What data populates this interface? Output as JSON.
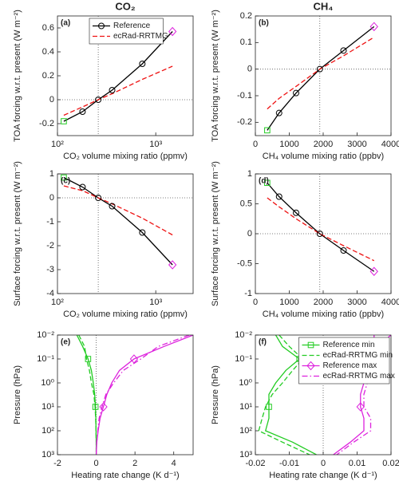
{
  "chart_data": [
    {
      "type": "line",
      "label": "(a)",
      "title": "CO₂",
      "xlabel": "CO₂ volume mixing ratio (ppmv)",
      "ylabel": "TOA forcing w.r.t. present (W m⁻²)",
      "xscale": "log",
      "xlim": [
        100,
        2400
      ],
      "xticks": [
        {
          "value": 100,
          "label": "10²"
        },
        {
          "value": 1000,
          "label": "10³"
        }
      ],
      "ylim": [
        -0.3,
        0.7
      ],
      "yticks": [
        -0.2,
        0,
        0.2,
        0.4,
        0.6
      ],
      "vline": 260,
      "hline": 0,
      "legend": "upper left",
      "x": [
        116,
        180,
        260,
        360,
        730,
        1480
      ],
      "series": [
        {
          "name": "Reference",
          "color": "#000000",
          "dash": "-",
          "marker": "o",
          "first_marker": {
            "shape": "s",
            "color": "#22cc22"
          },
          "last_marker": {
            "shape": "d",
            "color": "#dd22dd"
          },
          "values": [
            -0.18,
            -0.1,
            0,
            0.08,
            0.3,
            0.57
          ]
        },
        {
          "name": "ecRad-RRTMG",
          "color": "#ee1111",
          "dash": "--",
          "values": [
            -0.13,
            -0.06,
            0,
            0.05,
            0.17,
            0.28
          ]
        }
      ]
    },
    {
      "type": "line",
      "label": "(b)",
      "title": "CH₄",
      "xlabel": "CH₄ volume mixing ratio (ppbv)",
      "ylabel": "TOA forcing w.r.t. present (W m⁻²)",
      "xlim": [
        0,
        4000
      ],
      "xticks": [
        0,
        1000,
        2000,
        3000,
        4000
      ],
      "ylim": [
        -0.25,
        0.2
      ],
      "yticks": [
        -0.2,
        -0.1,
        0,
        0.1,
        0.2
      ],
      "vline": 1900,
      "hline": 0,
      "x": [
        350,
        700,
        1200,
        1900,
        2600,
        3500
      ],
      "series": [
        {
          "color": "#000000",
          "dash": "-",
          "marker": "o",
          "first_marker": {
            "shape": "s",
            "color": "#22cc22"
          },
          "last_marker": {
            "shape": "d",
            "color": "#dd22dd"
          },
          "values": [
            -0.23,
            -0.165,
            -0.09,
            0,
            0.07,
            0.16
          ]
        },
        {
          "color": "#ee1111",
          "dash": "--",
          "values": [
            -0.15,
            -0.11,
            -0.065,
            0,
            0.05,
            0.12
          ]
        }
      ]
    },
    {
      "type": "line",
      "label": "(c)",
      "xlabel": "CO₂ volume mixing ratio (ppmv)",
      "ylabel": "Surface forcing w.r.t. present (W m⁻²)",
      "xscale": "log",
      "xlim": [
        100,
        2400
      ],
      "xticks": [
        {
          "value": 100,
          "label": "10²"
        },
        {
          "value": 1000,
          "label": "10³"
        }
      ],
      "ylim": [
        -4,
        1
      ],
      "yticks": [
        -4,
        -3,
        -2,
        -1,
        0,
        1
      ],
      "vline": 260,
      "hline": 0,
      "x": [
        116,
        180,
        260,
        360,
        730,
        1480
      ],
      "series": [
        {
          "color": "#000000",
          "dash": "-",
          "marker": "o",
          "first_marker": {
            "shape": "s",
            "color": "#22cc22"
          },
          "last_marker": {
            "shape": "d",
            "color": "#dd22dd"
          },
          "values": [
            0.85,
            0.45,
            0,
            -0.35,
            -1.45,
            -2.8
          ]
        },
        {
          "color": "#ee1111",
          "dash": "--",
          "values": [
            0.5,
            0.3,
            0,
            -0.25,
            -0.85,
            -1.55
          ]
        }
      ]
    },
    {
      "type": "line",
      "label": "(d)",
      "xlabel": "CH₄ volume mixing ratio (ppbv)",
      "ylabel": "Surface forcing w.r.t. present (W m⁻²)",
      "xlim": [
        0,
        4000
      ],
      "xticks": [
        0,
        1000,
        2000,
        3000,
        4000
      ],
      "ylim": [
        -1,
        1
      ],
      "yticks": [
        -1,
        -0.5,
        0,
        0.5,
        1
      ],
      "vline": 1900,
      "hline": 0,
      "x": [
        350,
        700,
        1200,
        1900,
        2600,
        3500
      ],
      "series": [
        {
          "color": "#000000",
          "dash": "-",
          "marker": "o",
          "first_marker": {
            "shape": "s",
            "color": "#22cc22"
          },
          "last_marker": {
            "shape": "d",
            "color": "#dd22dd"
          },
          "values": [
            0.85,
            0.62,
            0.35,
            0,
            -0.28,
            -0.63
          ]
        },
        {
          "color": "#ee1111",
          "dash": "--",
          "values": [
            0.6,
            0.45,
            0.25,
            0,
            -0.2,
            -0.45
          ]
        }
      ]
    },
    {
      "type": "profile",
      "label": "(e)",
      "xlabel": "Heating rate change (K d⁻¹)",
      "ylabel": "Pressure (hPa)",
      "xlim": [
        -2,
        5
      ],
      "xticks": [
        -2,
        0,
        2,
        4
      ],
      "vline": 0,
      "yscale": "log",
      "yreverse": true,
      "ylim": [
        0.01,
        1000
      ],
      "yticks": [
        {
          "value": 0.01,
          "label": "10⁻²"
        },
        {
          "value": 0.1,
          "label": "10⁻¹"
        },
        {
          "value": 1,
          "label": "10⁰"
        },
        {
          "value": 10,
          "label": "10¹"
        },
        {
          "value": 100,
          "label": "10²"
        },
        {
          "value": 1000,
          "label": "10³"
        }
      ],
      "y": [
        0.01,
        0.03,
        0.1,
        0.3,
        1,
        3,
        10,
        30,
        100,
        300,
        1000
      ],
      "series": [
        {
          "color": "#22cc22",
          "dash": "-",
          "marker": "s",
          "marker_indices": [
            2,
            6
          ],
          "values": [
            -1,
            -0.7,
            -0.42,
            -0.25,
            -0.15,
            -0.08,
            -0.04,
            -0.02,
            -0.01,
            0,
            0
          ]
        },
        {
          "color": "#22cc22",
          "dash": "--",
          "values": [
            -0.9,
            -0.6,
            -0.5,
            -0.35,
            -0.25,
            -0.12,
            -0.06,
            -0.03,
            -0.01,
            0,
            0
          ]
        },
        {
          "color": "#dd22dd",
          "dash": "-",
          "marker": "d",
          "marker_indices": [
            2,
            6
          ],
          "values": [
            5,
            3.5,
            1.95,
            1.2,
            0.8,
            0.55,
            0.37,
            0.2,
            0.1,
            0.03,
            0
          ]
        },
        {
          "color": "#dd22dd",
          "dash": "-.",
          "values": [
            4.8,
            3.2,
            2.3,
            1.4,
            0.9,
            0.5,
            0.3,
            0.15,
            0.08,
            0.02,
            0
          ]
        }
      ]
    },
    {
      "type": "profile",
      "label": "(f)",
      "xlabel": "Heating rate change (K d⁻¹)",
      "ylabel": "Pressure (hPa)",
      "xlim": [
        -0.02,
        0.02
      ],
      "xticks": [
        -0.02,
        -0.01,
        0,
        0.01,
        0.02
      ],
      "vline": 0,
      "legend": "upper right",
      "yscale": "log",
      "yreverse": true,
      "ylim": [
        0.01,
        1000
      ],
      "yticks": [
        {
          "value": 0.01,
          "label": "10⁻²"
        },
        {
          "value": 0.1,
          "label": "10⁻¹"
        },
        {
          "value": 1,
          "label": "10⁰"
        },
        {
          "value": 10,
          "label": "10¹"
        },
        {
          "value": 100,
          "label": "10²"
        },
        {
          "value": 1000,
          "label": "10³"
        }
      ],
      "y": [
        0.01,
        0.03,
        0.1,
        0.3,
        1,
        3,
        10,
        30,
        100,
        300,
        1000
      ],
      "series": [
        {
          "name": "Reference min",
          "color": "#22cc22",
          "dash": "-",
          "marker": "s",
          "marker_indices": [
            2,
            6
          ],
          "values": [
            -0.014,
            -0.012,
            -0.007,
            -0.011,
            -0.014,
            -0.016,
            -0.016,
            -0.016,
            -0.017,
            -0.009,
            -0.002
          ]
        },
        {
          "name": "ecRad-RRTMG min",
          "color": "#22cc22",
          "dash": "--",
          "values": [
            -0.013,
            -0.01,
            -0.006,
            -0.009,
            -0.012,
            -0.015,
            -0.017,
            -0.018,
            -0.019,
            -0.012,
            -0.004
          ]
        },
        {
          "name": "Reference max",
          "color": "#dd22dd",
          "dash": "-",
          "marker": "d",
          "marker_indices": [
            2,
            6
          ],
          "values": [
            0.02,
            0.016,
            0.014,
            0.013,
            0.012,
            0.011,
            0.011,
            0.012,
            0.012,
            0.008,
            0.003
          ]
        },
        {
          "name": "ecRad-RRTMG max",
          "color": "#dd22dd",
          "dash": "-.",
          "values": [
            0.015,
            0.015,
            0.016,
            0.015,
            0.013,
            0.012,
            0.012,
            0.014,
            0.014,
            0.009,
            0.004
          ]
        }
      ]
    }
  ]
}
